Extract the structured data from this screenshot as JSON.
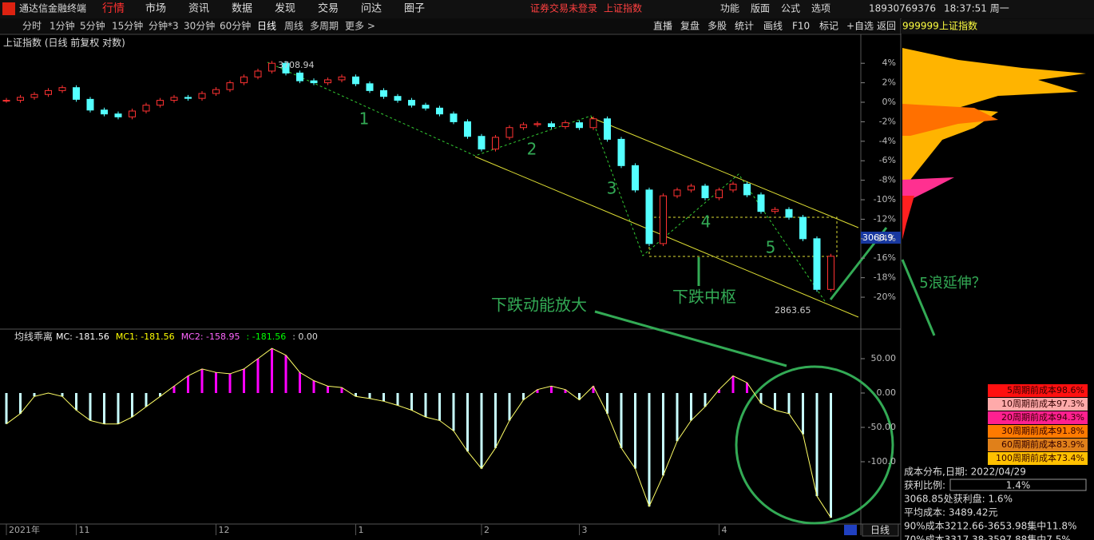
{
  "menu": {
    "app": "通达信金融终端",
    "items": [
      "行情",
      "市场",
      "资讯",
      "数据",
      "发现",
      "交易",
      "问达",
      "圈子"
    ],
    "notice": "证券交易未登录",
    "notice_link": "上证指数",
    "right": [
      "功能",
      "版面",
      "公式",
      "选项"
    ],
    "phone": "18930769376",
    "clock": "18:37:51 周一"
  },
  "toolbar": {
    "periods": [
      "分时",
      "1分钟",
      "5分钟",
      "15分钟",
      "分钟*3",
      "30分钟",
      "60分钟",
      "日线",
      "周线",
      "多周期",
      "更多 >"
    ],
    "tools": [
      "直播",
      "复盘",
      "多股",
      "统计",
      "画线",
      "F10",
      "标记",
      "+自选",
      "返回"
    ]
  },
  "chart_data": [
    {
      "type": "candlestick",
      "title": "上证指数 (日线 前复权 对数)",
      "up_color": "#ff3232",
      "down_color": "#54ffff",
      "categories": [
        "2021年",
        null,
        null,
        null,
        null,
        "11",
        null,
        null,
        null,
        null,
        null,
        null,
        null,
        null,
        null,
        "12",
        null,
        null,
        null,
        null,
        null,
        null,
        null,
        null,
        null,
        "1",
        null,
        null,
        null,
        null,
        null,
        null,
        null,
        null,
        "2",
        null,
        null,
        null,
        null,
        null,
        null,
        "3",
        null,
        null,
        null,
        null,
        null,
        null,
        null,
        null,
        null,
        "4",
        null,
        null,
        null,
        null,
        null,
        null,
        null,
        null
      ],
      "values": [
        0.2,
        0.5,
        0.8,
        1.2,
        1.5,
        0.3,
        -0.8,
        -1.2,
        -1.5,
        -0.9,
        -0.3,
        0.2,
        0.5,
        0.4,
        0.9,
        1.3,
        2.0,
        2.6,
        3.2,
        4.0,
        3.0,
        2.2,
        2.0,
        2.3,
        2.6,
        1.9,
        1.2,
        0.6,
        0.2,
        -0.3,
        -0.6,
        -1.2,
        -2.0,
        -3.5,
        -4.8,
        -3.6,
        -2.6,
        -2.3,
        -2.2,
        -2.5,
        -2.1,
        -2.6,
        -1.7,
        -3.8,
        -6.5,
        -9.0,
        -14.5,
        -9.6,
        -9.0,
        -8.6,
        -9.8,
        -9.0,
        -8.4,
        -9.5,
        -11.2,
        -11.0,
        -11.8,
        -14.0,
        -19.2,
        -15.8
      ],
      "ylim": [
        -22.7,
        5.41
      ],
      "yticks": [
        {
          "value": 4,
          "label": "4%"
        },
        {
          "value": 2,
          "label": "2%"
        },
        {
          "value": 0,
          "label": "0%"
        },
        {
          "value": -2,
          "label": "-2%"
        },
        {
          "value": -4,
          "label": "-4%"
        },
        {
          "value": -6,
          "label": "-6%"
        },
        {
          "value": -8,
          "label": "-8%"
        },
        {
          "value": -10,
          "label": "-10%"
        },
        {
          "value": -12,
          "label": "-12%"
        },
        {
          "value": -14,
          "label": "-14%"
        },
        {
          "value": -16,
          "label": "-16%"
        },
        {
          "value": -18,
          "label": "-18%"
        },
        {
          "value": -20,
          "label": "-20%"
        }
      ],
      "annotations": [
        "1",
        "2",
        "3",
        "4",
        "5",
        "下跌中枢",
        "下跌动能放大",
        "5浪延伸？"
      ],
      "high_label": "3708.94",
      "low_label": "2863.65",
      "price_label": "3068.9"
    },
    {
      "type": "bar",
      "title": "均线乖离",
      "pos_color": "#ff00ff",
      "neg_color": "#c8ffff",
      "line_color": "#ffff66",
      "legend": [
        {
          "text": "MC: -181.56",
          "color": "#ffffff"
        },
        {
          "text": "MC1: -181.56",
          "color": "#ffff00"
        },
        {
          "text": "MC2: -158.95",
          "color": "#ff66ff"
        },
        {
          "text": ": -181.56",
          "color": "#00ff00"
        },
        {
          "text": ": 0.00",
          "color": "#dddddd"
        }
      ],
      "values": [
        -45,
        -30,
        -5,
        0,
        -5,
        -25,
        -40,
        -45,
        -45,
        -35,
        -20,
        -5,
        10,
        25,
        35,
        30,
        28,
        35,
        50,
        65,
        55,
        30,
        18,
        10,
        8,
        -5,
        -8,
        -12,
        -18,
        -25,
        -35,
        -40,
        -55,
        -85,
        -110,
        -80,
        -40,
        -10,
        5,
        10,
        5,
        -10,
        10,
        -30,
        -80,
        -110,
        -165,
        -120,
        -70,
        -40,
        -20,
        5,
        25,
        15,
        -15,
        -25,
        -30,
        -60,
        -150,
        -181.56
      ],
      "ylim": [
        -189.5,
        74.4
      ],
      "yticks": [
        {
          "value": 50,
          "label": "50.00"
        },
        {
          "value": 0,
          "label": "0.00"
        },
        {
          "value": -50,
          "label": "-50.00"
        },
        {
          "value": -100,
          "label": "-100.0"
        }
      ]
    }
  ],
  "side_panel": {
    "code": "999999",
    "name": "上证指数",
    "cost_rows": [
      {
        "label": "5周期前成本98.6%",
        "color": "#ff1010"
      },
      {
        "label": "10周期前成本97.3%",
        "color": "#ffaaaa"
      },
      {
        "label": "20周期前成本94.3%",
        "color": "#ff2090"
      },
      {
        "label": "30周期前成本91.8%",
        "color": "#ff7a00"
      },
      {
        "label": "60周期前成本83.9%",
        "color": "#e0801a"
      },
      {
        "label": "100周期前成本73.4%",
        "color": "#ffc000"
      }
    ],
    "date_line": "成本分布,日期:  2022/04/29",
    "profit_label": "获利比例:",
    "profit_value": "1.4%",
    "info": [
      "3068.85处获利盘: 1.6%",
      "平均成本: 3489.42元",
      "90%成本3212.66-3653.98集中11.8%",
      "70%成本3317.38-3597.88集中7.5%"
    ]
  },
  "bottom_tab": "日线"
}
